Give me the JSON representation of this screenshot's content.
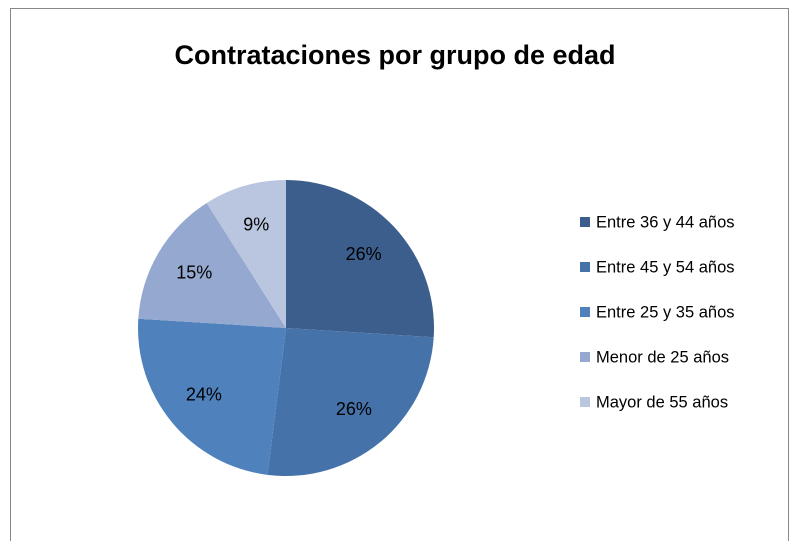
{
  "chart_data": {
    "type": "pie",
    "title": "Contrataciones por grupo de edad",
    "categories": [
      "Entre 36 y 44 años",
      "Entre 45 y 54 años",
      "Entre 25 y 35 años",
      "Menor de 25 años",
      "Mayor de 55 años"
    ],
    "values": [
      26,
      26,
      24,
      15,
      9
    ],
    "value_labels": [
      "26%",
      "26%",
      "24%",
      "15%",
      "9%"
    ],
    "colors": [
      "#3c5e8d",
      "#4572a9",
      "#4f81bd",
      "#95a8cf",
      "#bac6df"
    ],
    "legend": "right"
  }
}
